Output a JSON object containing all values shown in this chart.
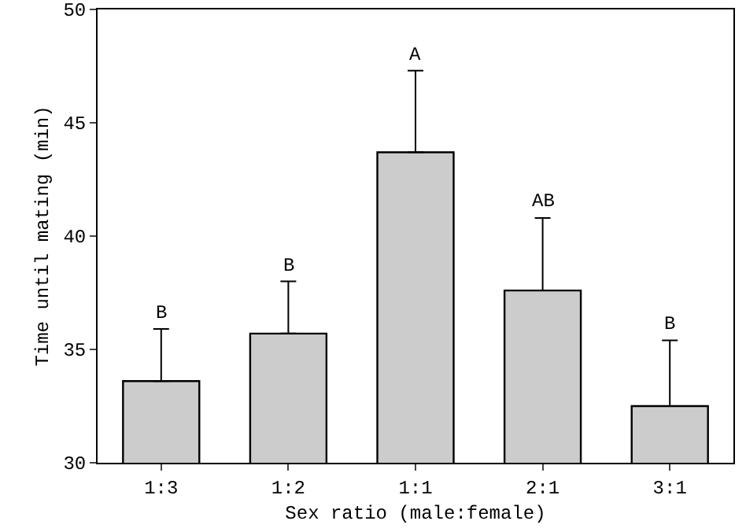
{
  "chart_data": {
    "type": "bar",
    "xlabel": "Sex ratio (male:female)",
    "ylabel": "Time until mating (min)",
    "categories": [
      "1:3",
      "1:2",
      "1:1",
      "2:1",
      "3:1"
    ],
    "values": [
      33.6,
      35.7,
      43.7,
      37.6,
      32.5
    ],
    "errors": [
      [
        33.6,
        35.9
      ],
      [
        35.7,
        38.0
      ],
      [
        43.7,
        47.3
      ],
      [
        37.6,
        40.8
      ],
      [
        32.5,
        35.4
      ]
    ],
    "color": "#cccccc",
    "ylim": [
      30,
      50
    ],
    "yticks": [
      30,
      35,
      40,
      45,
      50
    ],
    "grid": false,
    "annotations": [
      {
        "text": "B",
        "x": "1:3",
        "y": 35.9
      },
      {
        "text": "B",
        "x": "1:2",
        "y": 38.0
      },
      {
        "text": "A",
        "x": "1:1",
        "y": 47.3
      },
      {
        "text": "AB",
        "x": "2:1",
        "y": 40.8
      },
      {
        "text": "B",
        "x": "3:1",
        "y": 35.4
      }
    ]
  }
}
